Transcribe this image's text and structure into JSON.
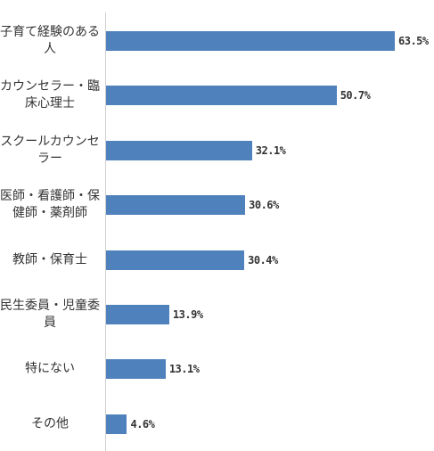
{
  "chart_data": {
    "type": "bar",
    "orientation": "horizontal",
    "color": "#4f81bd",
    "categories": [
      "子育て経験のある人",
      "カウンセラー・臨床心理士",
      "スクールカウンセラー",
      "医師・看護師・保健師・薬剤師",
      "教師・保育士",
      "民生委員・児童委員",
      "特にない",
      "その他"
    ],
    "values": [
      63.5,
      50.7,
      32.1,
      30.6,
      30.4,
      13.9,
      13.1,
      4.6
    ],
    "value_labels": [
      "63.5%",
      "50.7%",
      "32.1%",
      "30.6%",
      "30.4%",
      "13.9%",
      "13.1%",
      "4.6%"
    ]
  }
}
